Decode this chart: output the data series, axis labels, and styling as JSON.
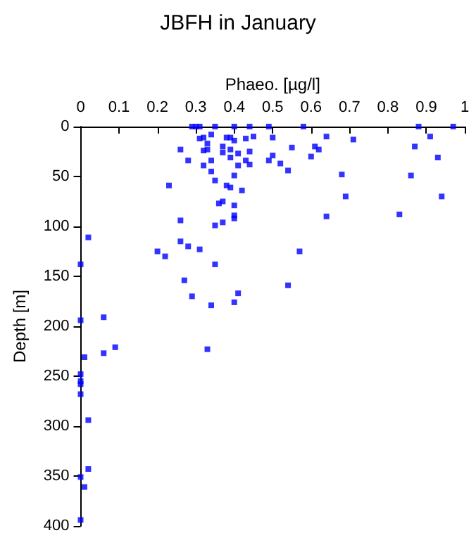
{
  "chart_data": {
    "type": "scatter",
    "title": "JBFH in January",
    "xlabel": "Phaeo. [µg/l]",
    "ylabel": "Depth [m]",
    "marker": "square",
    "xlim": [
      0,
      1
    ],
    "xticks": [
      0,
      0.1,
      0.2,
      0.3,
      0.4,
      0.5,
      0.6,
      0.7,
      0.8,
      0.9,
      1
    ],
    "ylim": [
      400,
      0
    ],
    "yticks": [
      0,
      50,
      100,
      150,
      200,
      250,
      300,
      350,
      400
    ],
    "series": [
      {
        "color": "#0000ff",
        "x": [
          0.29,
          0.3,
          0.31,
          0.35,
          0.4,
          0.44,
          0.49,
          0.58,
          0.88,
          0.97,
          0.34,
          0.31,
          0.32,
          0.38,
          0.39,
          0.43,
          0.45,
          0.5,
          0.64,
          0.71,
          0.91,
          0.4,
          0.33,
          0.26,
          0.33,
          0.37,
          0.39,
          0.32,
          0.44,
          0.55,
          0.61,
          0.62,
          0.87,
          0.37,
          0.41,
          0.39,
          0.43,
          0.5,
          0.49,
          0.6,
          0.93,
          0.28,
          0.34,
          0.52,
          0.32,
          0.41,
          0.44,
          0.34,
          0.54,
          0.4,
          0.68,
          0.86,
          0.35,
          0.23,
          0.38,
          0.39,
          0.42,
          0.69,
          0.94,
          0.37,
          0.36,
          0.4,
          0.4,
          0.4,
          0.64,
          0.83,
          0.26,
          0.37,
          0.35,
          0.02,
          0.26,
          0.28,
          0.2,
          0.31,
          0.22,
          0.57,
          0,
          0.35,
          0.27,
          0.54,
          0.29,
          0.41,
          0.34,
          0.4,
          0.06,
          0,
          0.06,
          0.09,
          0.33,
          0.01,
          0,
          0,
          0,
          0,
          0.02,
          0.02,
          0,
          0.01,
          0
        ],
        "values": [
          0,
          0,
          0,
          0,
          0,
          0,
          0,
          0,
          0,
          0,
          8,
          12,
          11,
          11,
          11,
          12,
          10,
          11,
          10,
          13,
          10,
          14,
          17,
          23,
          23,
          20,
          23,
          24,
          25,
          21,
          20,
          23,
          20,
          26,
          27,
          31,
          34,
          29,
          34,
          30,
          31,
          34,
          34,
          37,
          39,
          39,
          38,
          45,
          44,
          49,
          48,
          49,
          54,
          59,
          59,
          61,
          64,
          70,
          70,
          75,
          77,
          79,
          89,
          92,
          90,
          88,
          94,
          96,
          99,
          111,
          115,
          120,
          125,
          123,
          130,
          125,
          138,
          138,
          154,
          159,
          170,
          167,
          179,
          176,
          191,
          194,
          227,
          221,
          223,
          231,
          248,
          255,
          258,
          268,
          294,
          343,
          351,
          361,
          394
        ]
      }
    ]
  }
}
